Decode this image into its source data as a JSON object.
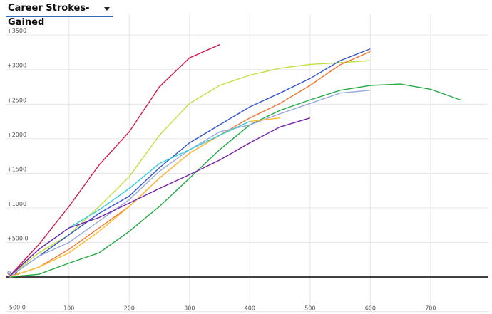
{
  "dropdown": {
    "label": "Career Strokes-Gained"
  },
  "chart_data": {
    "type": "line",
    "x": [
      0,
      50,
      100,
      150,
      200,
      250,
      300,
      350,
      400,
      450,
      500,
      550,
      600,
      650,
      700,
      750
    ],
    "xlim": [
      -5,
      796
    ],
    "xticks": [
      100,
      200,
      300,
      400,
      500,
      600,
      700
    ],
    "ylim": [
      -500,
      3800
    ],
    "yticks": [
      {
        "value": -500,
        "label": "-500.0"
      },
      {
        "value": 0,
        "label": "0.00"
      },
      {
        "value": 500,
        "label": "+500.0"
      },
      {
        "value": 1000,
        "label": "+1000"
      },
      {
        "value": 1500,
        "label": "+1500"
      },
      {
        "value": 2000,
        "label": "+2000"
      },
      {
        "value": 2500,
        "label": "+2500"
      },
      {
        "value": 3000,
        "label": "+3000"
      },
      {
        "value": 3500,
        "label": "+3500"
      }
    ],
    "grid": true,
    "series": [
      {
        "color": "#d6184f",
        "values": [
          0,
          470,
          1020,
          1620,
          2100,
          2750,
          3170,
          3360,
          null,
          null,
          null,
          null,
          null,
          null,
          null,
          null
        ]
      },
      {
        "color": "#c0e040",
        "values": [
          0,
          350,
          610,
          1020,
          1450,
          2050,
          2510,
          2770,
          2920,
          3020,
          3075,
          3100,
          3130,
          null,
          null,
          null
        ]
      },
      {
        "color": "#22aa44",
        "values": [
          0,
          40,
          200,
          350,
          660,
          1020,
          1430,
          1840,
          2200,
          2410,
          2560,
          2700,
          2770,
          2790,
          2715,
          2560
        ]
      },
      {
        "color": "#3355cc",
        "values": [
          0,
          300,
          610,
          920,
          1170,
          1580,
          1940,
          2200,
          2460,
          2660,
          2870,
          3130,
          3300,
          null,
          null,
          null
        ]
      },
      {
        "color": "#ee7733",
        "values": [
          0,
          140,
          400,
          710,
          1020,
          1430,
          1790,
          2050,
          2300,
          2510,
          2770,
          3070,
          3260,
          null,
          null,
          null
        ]
      },
      {
        "color": "#99aadd",
        "values": [
          0,
          300,
          500,
          810,
          1120,
          1530,
          1840,
          2100,
          2200,
          2360,
          2510,
          2660,
          2700,
          null,
          null,
          null
        ]
      },
      {
        "color": "#ffbb33",
        "values": [
          0,
          140,
          350,
          660,
          1020,
          1430,
          1790,
          2050,
          2250,
          2300,
          null,
          null,
          null,
          null,
          null,
          null
        ]
      },
      {
        "color": "#33ccdd",
        "values": [
          0,
          400,
          710,
          970,
          1280,
          1640,
          1840,
          2050,
          2250,
          null,
          null,
          null,
          null,
          null,
          null,
          null
        ]
      },
      {
        "color": "#7722aa",
        "values": [
          0,
          400,
          710,
          860,
          1070,
          1280,
          1480,
          1690,
          1940,
          2170,
          2300,
          null,
          null,
          null,
          null,
          null
        ]
      }
    ]
  }
}
